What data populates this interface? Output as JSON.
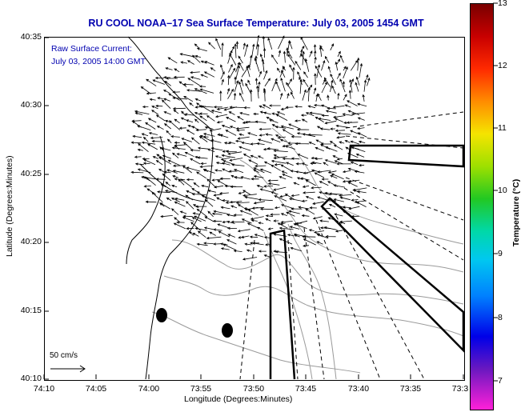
{
  "title": "RU COOL  NOAA–17  Sea Surface Temperature:  July 03, 2005 1454 GMT",
  "note_line1": "Raw Surface Current:",
  "note_line2": "July 03, 2005 14:00 GMT",
  "y_axis_label": "Latitude (Degrees:Minutes)",
  "x_axis_label": "Longitude (Degrees:Minutes)",
  "y_ticks": [
    "40:35",
    "40:30",
    "40:25",
    "40:20",
    "40:15",
    "40:10"
  ],
  "x_ticks": [
    "74:10",
    "74:05",
    "74:00",
    "73:55",
    "73:50",
    "73:45",
    "73:40",
    "73:35",
    "73:3"
  ],
  "colorbar_label": "Temperature (°C)",
  "colorbar_ticks": [
    "13",
    "12",
    "11",
    "10",
    "9",
    "8",
    "7"
  ],
  "legend_scale": "50 cm/s",
  "colors": {
    "title": "#0000b0",
    "land": "#ffffff",
    "contour": "#9a9a9a",
    "coast": "#000000"
  }
}
